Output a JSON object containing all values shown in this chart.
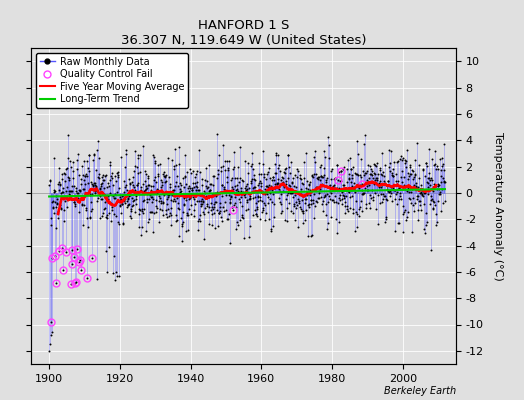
{
  "title": "HANFORD 1 S",
  "subtitle": "36.307 N, 119.649 W (United States)",
  "ylabel": "Temperature Anomaly (°C)",
  "xlabel_ticks": [
    1900,
    1920,
    1940,
    1960,
    1980,
    2000
  ],
  "ylim": [
    -13,
    11
  ],
  "yticks": [
    -12,
    -10,
    -8,
    -6,
    -4,
    -2,
    0,
    2,
    4,
    6,
    8,
    10
  ],
  "xlim": [
    1895,
    2015
  ],
  "year_start": 1900,
  "year_end": 2011,
  "background_color": "#e0e0e0",
  "plot_bg_color": "#e0e0e0",
  "raw_line_color": "#5555ff",
  "raw_dot_color": "#000000",
  "qc_fail_color": "#ff44ff",
  "moving_avg_color": "#ff0000",
  "trend_color": "#00cc00",
  "watermark": "Berkeley Earth",
  "seed": 77
}
